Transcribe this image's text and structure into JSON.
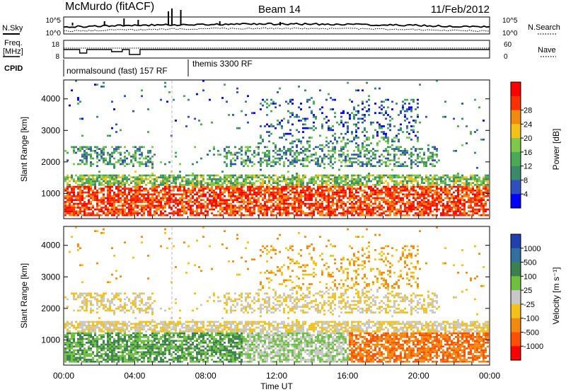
{
  "header": {
    "station": "McMurdo (fitACF)",
    "beam": "Beam 14",
    "date": "11/Feb/2012"
  },
  "panel_labels": {
    "nsky": "N.Sky",
    "nsearch": "N.Search",
    "freq_line1": "Freq.",
    "freq_line2": "[MHz]",
    "nave": "Nave",
    "cpid": "CPID"
  },
  "mode_labels": [
    "normalsound (fast) 157 RF",
    "themis 3300 RF"
  ],
  "colors": {
    "power": [
      "#0000ff",
      "#2f4fbf",
      "#3a8a6a",
      "#4aaa55",
      "#7ec84a",
      "#f2c21a",
      "#f28a10",
      "#ff3000",
      "#ff0000"
    ],
    "velocity": [
      "#2040b0",
      "#3070a0",
      "#3d8050",
      "#70c040",
      "#c8c8c8",
      "#f2c21a",
      "#f28a10",
      "#ff5000",
      "#ff0000"
    ]
  },
  "chart_data": [
    {
      "type": "line",
      "name": "noise-panel",
      "series": [
        {
          "name": "N.Sky"
        },
        {
          "name": "N.Search"
        }
      ],
      "x_range_hours": [
        0,
        24
      ],
      "y_left_ticks": [
        "10^5",
        "10^0"
      ],
      "y_right_ticks": [
        "10^5",
        "10^0"
      ]
    },
    {
      "type": "line",
      "name": "frequency-panel",
      "series": [
        {
          "name": "Freq."
        },
        {
          "name": "Nave"
        }
      ],
      "y_left_ticks": [
        "18",
        "8"
      ],
      "y_right_ticks": [
        "60",
        "0"
      ]
    },
    {
      "type": "heatmap",
      "name": "power",
      "ylabel": "Slant Range [km]",
      "y_ticks": [
        1000,
        2000,
        3000,
        4000
      ],
      "ylim": [
        200,
        4600
      ],
      "colorbar": {
        "label": "Power [dB]",
        "ticks": [
          "4",
          "8",
          "12",
          "16",
          "20",
          "24",
          "28"
        ]
      }
    },
    {
      "type": "heatmap",
      "name": "velocity",
      "ylabel": "Slant Range [km]",
      "y_ticks": [
        1000,
        2000,
        3000,
        4000
      ],
      "ylim": [
        200,
        4600
      ],
      "colorbar": {
        "label": "Velocity [m s⁻¹]",
        "ticks": [
          "1000",
          "500",
          "100",
          "25",
          "-25",
          "-100",
          "-500",
          "-1000"
        ]
      }
    }
  ],
  "x_axis": {
    "label": "Time UT",
    "ticks": [
      "00:00",
      "04:00",
      "08:00",
      "12:00",
      "16:00",
      "20:00",
      "00:00"
    ],
    "range_hours": [
      0,
      24
    ]
  }
}
